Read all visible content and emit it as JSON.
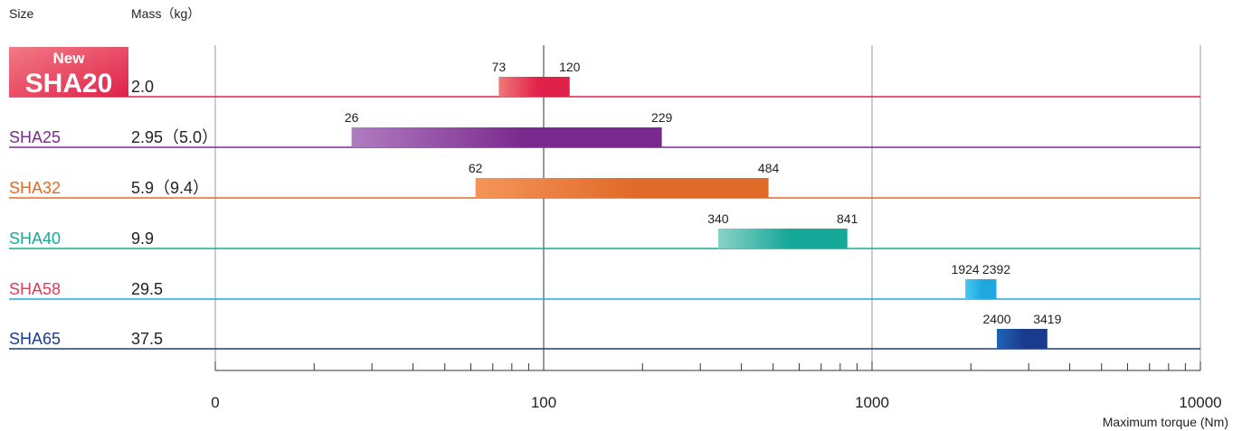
{
  "headers": {
    "size": "Size",
    "mass": "Mass（kg）"
  },
  "new_badge": "New",
  "chart_data": {
    "type": "bar",
    "orientation": "horizontal-range",
    "x_scale": "log",
    "xlabel": "Maximum torque (Nm)",
    "x_ticks": [
      "0",
      "100",
      "1000",
      "10000"
    ],
    "grid": true,
    "rows": [
      {
        "size": "SHA20",
        "mass": "2.0",
        "min": 73,
        "max": 120,
        "color": "#e0224a",
        "color_light": "#f07878",
        "is_new": true
      },
      {
        "size": "SHA25",
        "mass": "2.95（5.0）",
        "min": 26,
        "max": 229,
        "color": "#7a2a8e",
        "color_light": "#b07cc0",
        "is_new": false
      },
      {
        "size": "SHA32",
        "mass": "5.9（9.4）",
        "min": 62,
        "max": 484,
        "color": "#e06a28",
        "color_light": "#f5945a",
        "is_new": false
      },
      {
        "size": "SHA40",
        "mass": "9.9",
        "min": 340,
        "max": 841,
        "color": "#16a898",
        "color_light": "#8ad2c8",
        "is_new": false
      },
      {
        "size": "SHA58",
        "mass": "29.5",
        "min": 1924,
        "max": 2392,
        "color": "#1ea8e0",
        "color_light": "#48c8f0",
        "is_new": false,
        "size_color": "#e03a5a"
      },
      {
        "size": "SHA65",
        "mass": "37.5",
        "min": 2400,
        "max": 3419,
        "color": "#1a3a8e",
        "color_light": "#1f63b5",
        "is_new": false
      }
    ]
  }
}
